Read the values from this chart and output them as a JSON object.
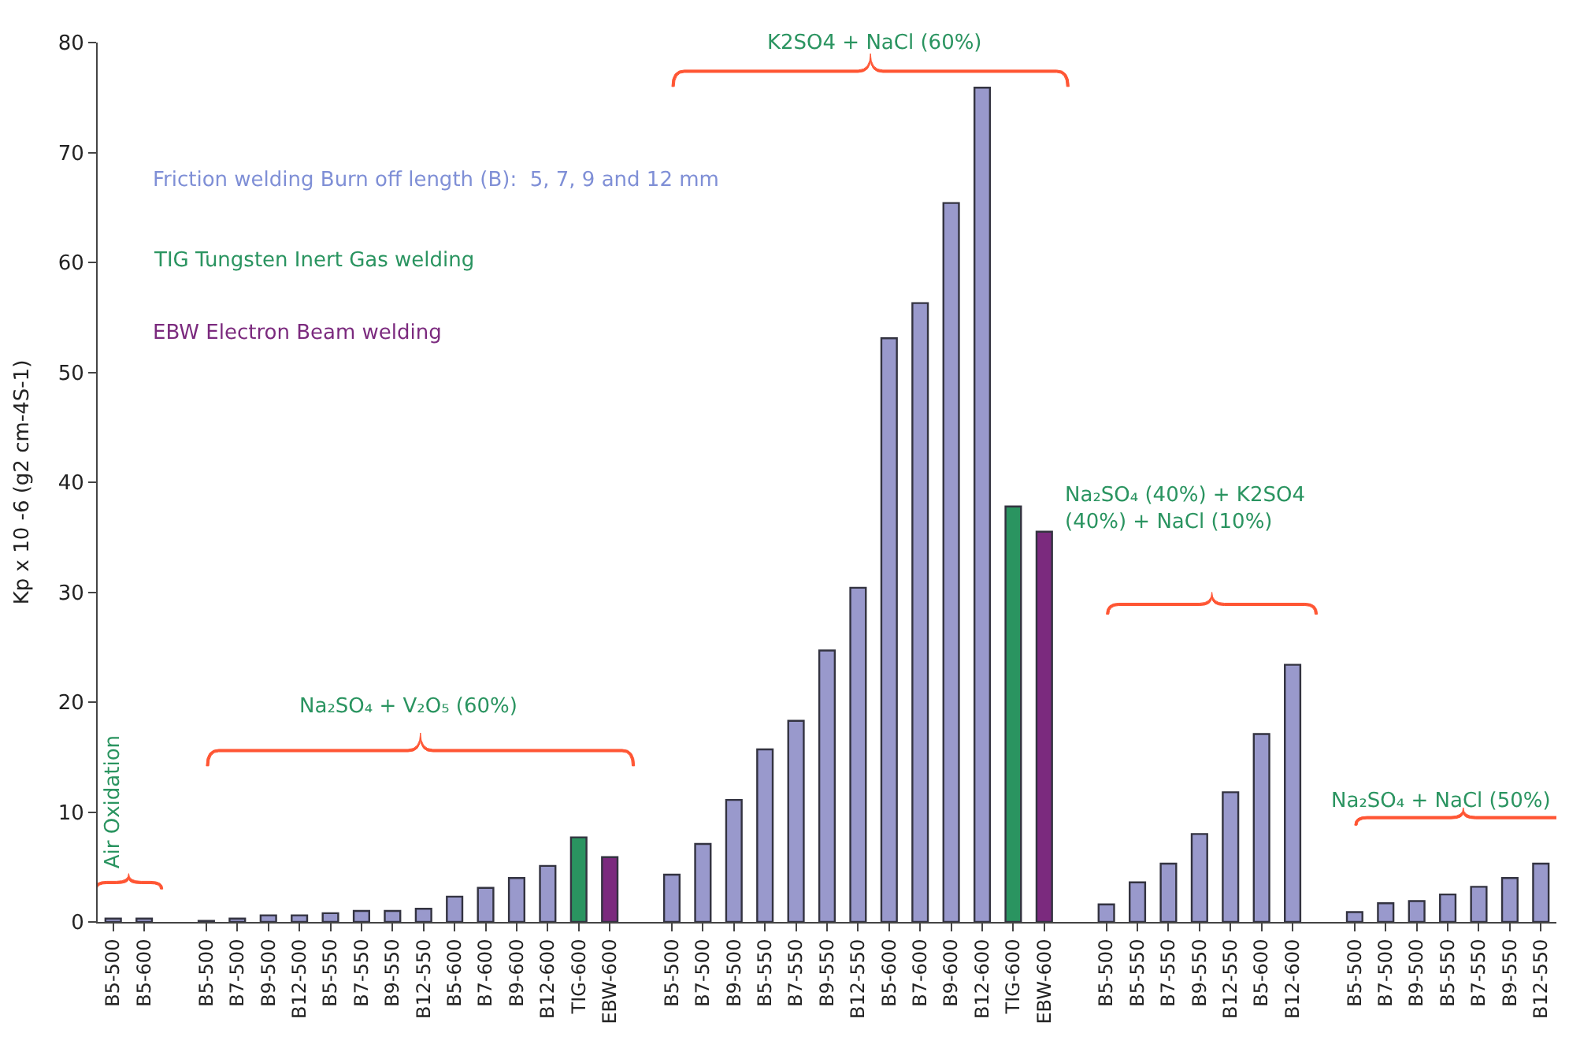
{
  "chart_data": {
    "type": "bar",
    "ylabel": "Kp x 10 -6 (g2 cm-4S-1)",
    "categories": [
      "B5-500",
      "B5-600",
      null,
      "B5-500",
      "B7-500",
      "B9-500",
      "B12-500",
      "B5-550",
      "B7-550",
      "B9-550",
      "B12-550",
      "B5-600",
      "B7-600",
      "B9-600",
      "B12-600",
      "TIG-600",
      "EBW-600",
      null,
      "B5-500",
      "B7-500",
      "B9-500",
      "B5-550",
      "B7-550",
      "B9-550",
      "B12-550",
      "B5-600",
      "B7-600",
      "B9-600",
      "B12-600",
      "TIG-600",
      "EBW-600",
      null,
      "B5-500",
      "B5-550",
      "B7-550",
      "B9-550",
      "B12-550",
      "B5-600",
      "B12-600",
      null,
      "B5-500",
      "B7-500",
      "B9-500",
      "B5-550",
      "B7-550",
      "B9-550",
      "B12-550"
    ],
    "values": [
      0.3,
      0.3,
      null,
      0.1,
      0.3,
      0.6,
      0.6,
      0.8,
      1.0,
      1.0,
      1.2,
      2.3,
      3.1,
      4.0,
      5.1,
      7.7,
      5.9,
      null,
      4.3,
      7.1,
      11.1,
      15.7,
      18.3,
      24.7,
      30.4,
      53.1,
      56.3,
      65.4,
      75.9,
      37.8,
      35.5,
      null,
      1.6,
      3.6,
      5.3,
      8.0,
      11.8,
      17.1,
      23.4,
      null,
      0.9,
      1.7,
      1.9,
      2.5,
      3.2,
      4.0,
      5.3
    ],
    "colors": [
      "#9999cc",
      "#9999cc",
      null,
      "#9999cc",
      "#9999cc",
      "#9999cc",
      "#9999cc",
      "#9999cc",
      "#9999cc",
      "#9999cc",
      "#9999cc",
      "#9999cc",
      "#9999cc",
      "#9999cc",
      "#9999cc",
      "#2a9460",
      "#7b2a7e",
      null,
      "#9999cc",
      "#9999cc",
      "#9999cc",
      "#9999cc",
      "#9999cc",
      "#9999cc",
      "#9999cc",
      "#9999cc",
      "#9999cc",
      "#9999cc",
      "#9999cc",
      "#2a9460",
      "#7b2a7e",
      null,
      "#9999cc",
      "#9999cc",
      "#9999cc",
      "#9999cc",
      "#9999cc",
      "#9999cc",
      "#9999cc",
      null,
      "#9999cc",
      "#9999cc",
      "#9999cc",
      "#9999cc",
      "#9999cc",
      "#9999cc",
      "#9999cc"
    ],
    "ylim": [
      0,
      80
    ],
    "yticks": [
      0,
      10,
      20,
      30,
      40,
      50,
      60,
      70,
      80
    ],
    "legend": false,
    "annotations": [
      "Friction welding Burn off length (B):  5, 7, 9 and 12 mm",
      "TIG Tungsten Inert Gas welding",
      "EBW Electron Beam welding",
      "Air Oxidation",
      "Na₂SO₄ + V₂O₅ (60%)",
      "K2SO4 + NaCl (60%)",
      "Na₂SO₄ (40%) + K2SO4\n(40%) + NaCl (10%)",
      "Na₂SO₄ + NaCl (50%)"
    ]
  }
}
